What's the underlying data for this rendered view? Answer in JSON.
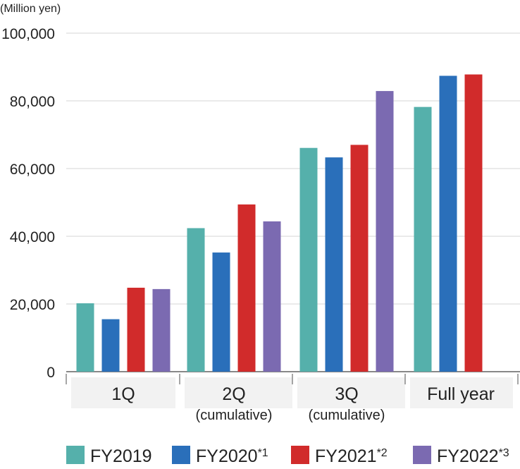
{
  "chart_data": {
    "type": "bar",
    "unit_label": "(Million yen)",
    "categories": [
      {
        "label": "1Q",
        "sublabel": ""
      },
      {
        "label": "2Q",
        "sublabel": "(cumulative)"
      },
      {
        "label": "3Q",
        "sublabel": "(cumulative)"
      },
      {
        "label": "Full year",
        "sublabel": ""
      }
    ],
    "series": [
      {
        "name": "FY2019",
        "marker": "",
        "color": "#55b0ab",
        "values": [
          20200,
          42400,
          66100,
          78200
        ]
      },
      {
        "name": "FY2020",
        "marker": "*1",
        "color": "#2a6fba",
        "values": [
          15500,
          35200,
          63300,
          87400
        ]
      },
      {
        "name": "FY2021",
        "marker": "*2",
        "color": "#d12b2b",
        "values": [
          24800,
          49400,
          67000,
          87800
        ]
      },
      {
        "name": "FY2022",
        "marker": "*3",
        "color": "#7b6ab1",
        "values": [
          24400,
          44400,
          82900,
          null
        ]
      }
    ],
    "y_ticks": [
      "0",
      "20,000",
      "40,000",
      "60,000",
      "80,000",
      "100,000"
    ],
    "y_tick_values": [
      0,
      20000,
      40000,
      60000,
      80000,
      100000
    ],
    "ylim": [
      0,
      100000
    ],
    "grid": true,
    "legend_position": "bottom"
  }
}
